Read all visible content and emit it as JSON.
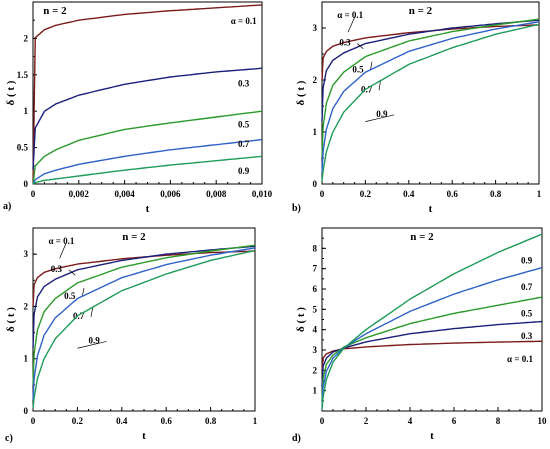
{
  "colors": {
    "0.1": "#7b1a1a",
    "0.3": "#1a1f7a",
    "0.5": "#2a9a2a",
    "0.7": "#2f62c9",
    "0.9": "#1e9b57"
  },
  "chart_data": [
    {
      "type": "line",
      "panel_label": "a)",
      "title": "n = 2",
      "xlabel": "t",
      "ylabel": "δ ( t )",
      "xlim": [
        0,
        0.01
      ],
      "ylim": [
        0,
        2.5
      ],
      "x_ticks": [
        "0",
        "0,002",
        "0,004",
        "0,006",
        "0,008",
        "0,010"
      ],
      "y_ticks": [
        "0",
        "0.5",
        "1",
        "1.5",
        "2"
      ],
      "series": [
        {
          "name": "α = 0.1",
          "alpha": 0.1,
          "x": [
            0,
            0.0001,
            0.0005,
            0.001,
            0.002,
            0.004,
            0.006,
            0.008,
            0.01
          ],
          "y": [
            0.02,
            2.01,
            2.12,
            2.18,
            2.25,
            2.33,
            2.38,
            2.42,
            2.46
          ]
        },
        {
          "name": "0.3",
          "alpha": 0.3,
          "x": [
            0,
            0.0001,
            0.0005,
            0.001,
            0.002,
            0.004,
            0.006,
            0.008,
            0.01
          ],
          "y": [
            0.2,
            0.77,
            1.0,
            1.1,
            1.22,
            1.37,
            1.47,
            1.54,
            1.59
          ]
        },
        {
          "name": "0.5",
          "alpha": 0.5,
          "x": [
            0,
            0.0001,
            0.0005,
            0.001,
            0.002,
            0.004,
            0.006,
            0.008,
            0.01
          ],
          "y": [
            0,
            0.25,
            0.38,
            0.47,
            0.6,
            0.75,
            0.84,
            0.92,
            1.0
          ]
        },
        {
          "name": "0.7",
          "alpha": 0.7,
          "x": [
            0,
            0.0001,
            0.0005,
            0.001,
            0.002,
            0.004,
            0.006,
            0.008,
            0.01
          ],
          "y": [
            0,
            0.06,
            0.14,
            0.19,
            0.27,
            0.38,
            0.47,
            0.54,
            0.61
          ]
        },
        {
          "name": "0.9",
          "alpha": 0.9,
          "x": [
            0,
            0.0001,
            0.0005,
            0.001,
            0.002,
            0.004,
            0.006,
            0.008,
            0.01
          ],
          "y": [
            0,
            0.02,
            0.05,
            0.07,
            0.11,
            0.19,
            0.26,
            0.32,
            0.38
          ]
        }
      ]
    },
    {
      "type": "line",
      "panel_label": "b)",
      "title": "n = 2",
      "xlabel": "t",
      "ylabel": "δ ( t )",
      "xlim": [
        0,
        1
      ],
      "ylim": [
        0,
        3.5
      ],
      "x_ticks": [
        "0",
        "0.2",
        "0.4",
        "0.6",
        "0.8",
        "1"
      ],
      "y_ticks": [
        "0",
        "1",
        "2",
        "3"
      ],
      "series": [
        {
          "name": "α = 0.1",
          "alpha": 0.1,
          "x": [
            0,
            0.005,
            0.02,
            0.05,
            0.1,
            0.2,
            0.4,
            0.6,
            0.8,
            1.0
          ],
          "y": [
            2.0,
            2.42,
            2.55,
            2.65,
            2.72,
            2.81,
            2.91,
            2.98,
            3.03,
            3.06
          ]
        },
        {
          "name": "0.3",
          "alpha": 0.3,
          "x": [
            0,
            0.005,
            0.02,
            0.05,
            0.1,
            0.2,
            0.4,
            0.6,
            0.8,
            1.0
          ],
          "y": [
            1.2,
            1.85,
            2.18,
            2.38,
            2.52,
            2.7,
            2.88,
            3.0,
            3.08,
            3.15
          ]
        },
        {
          "name": "0.5",
          "alpha": 0.5,
          "x": [
            0,
            0.005,
            0.02,
            0.05,
            0.1,
            0.2,
            0.4,
            0.6,
            0.8,
            1.0
          ],
          "y": [
            0.5,
            1.1,
            1.55,
            1.9,
            2.15,
            2.45,
            2.75,
            2.93,
            3.06,
            3.17
          ]
        },
        {
          "name": "0.7",
          "alpha": 0.7,
          "x": [
            0,
            0.005,
            0.02,
            0.05,
            0.1,
            0.2,
            0.4,
            0.6,
            0.8,
            1.0
          ],
          "y": [
            0.2,
            0.62,
            1.05,
            1.45,
            1.78,
            2.15,
            2.55,
            2.8,
            2.98,
            3.12
          ]
        },
        {
          "name": "0.9",
          "alpha": 0.9,
          "x": [
            0,
            0.005,
            0.02,
            0.05,
            0.1,
            0.2,
            0.4,
            0.6,
            0.8,
            1.0
          ],
          "y": [
            0.05,
            0.25,
            0.62,
            1.0,
            1.38,
            1.82,
            2.3,
            2.62,
            2.88,
            3.07
          ]
        }
      ]
    },
    {
      "type": "line",
      "panel_label": "c)",
      "title": "n = 2",
      "xlabel": "t",
      "ylabel": "δ ( t )",
      "xlim": [
        0,
        1
      ],
      "ylim": [
        0,
        3.5
      ],
      "x_ticks": [
        "0",
        "0.2",
        "0.4",
        "0.6",
        "0.8",
        "1"
      ],
      "y_ticks": [
        "0",
        "1",
        "2",
        "3"
      ],
      "series": [
        {
          "name": "α = 0.1",
          "alpha": 0.1,
          "x": [
            0,
            0.005,
            0.02,
            0.05,
            0.1,
            0.2,
            0.4,
            0.6,
            0.8,
            1.0
          ],
          "y": [
            2.0,
            2.42,
            2.55,
            2.65,
            2.72,
            2.81,
            2.91,
            2.98,
            3.03,
            3.06
          ]
        },
        {
          "name": "0.3",
          "alpha": 0.3,
          "x": [
            0,
            0.005,
            0.02,
            0.05,
            0.1,
            0.2,
            0.4,
            0.6,
            0.8,
            1.0
          ],
          "y": [
            1.2,
            1.85,
            2.18,
            2.38,
            2.52,
            2.7,
            2.88,
            3.0,
            3.08,
            3.15
          ]
        },
        {
          "name": "0.5",
          "alpha": 0.5,
          "x": [
            0,
            0.005,
            0.02,
            0.05,
            0.1,
            0.2,
            0.4,
            0.6,
            0.8,
            1.0
          ],
          "y": [
            0.5,
            1.1,
            1.55,
            1.9,
            2.15,
            2.45,
            2.75,
            2.93,
            3.06,
            3.17
          ]
        },
        {
          "name": "0.7",
          "alpha": 0.7,
          "x": [
            0,
            0.005,
            0.02,
            0.05,
            0.1,
            0.2,
            0.4,
            0.6,
            0.8,
            1.0
          ],
          "y": [
            0.2,
            0.62,
            1.05,
            1.45,
            1.78,
            2.15,
            2.55,
            2.8,
            2.98,
            3.12
          ]
        },
        {
          "name": "0.9",
          "alpha": 0.9,
          "x": [
            0,
            0.005,
            0.02,
            0.05,
            0.1,
            0.2,
            0.4,
            0.6,
            0.8,
            1.0
          ],
          "y": [
            0.05,
            0.25,
            0.62,
            1.0,
            1.38,
            1.82,
            2.3,
            2.62,
            2.88,
            3.07
          ]
        }
      ]
    },
    {
      "type": "line",
      "panel_label": "d)",
      "title": "n = 2",
      "xlabel": "t",
      "ylabel": "δ ( t )",
      "xlim": [
        0,
        10
      ],
      "ylim": [
        0,
        9
      ],
      "x_ticks": [
        "0",
        "2",
        "4",
        "6",
        "8",
        "10"
      ],
      "y_ticks": [
        "1",
        "2",
        "3",
        "4",
        "5",
        "6",
        "7",
        "8"
      ],
      "series": [
        {
          "name": "α = 0.1",
          "alpha": 0.1,
          "x": [
            0,
            0.05,
            0.2,
            0.5,
            1,
            2,
            4,
            6,
            8,
            10
          ],
          "y": [
            2.0,
            2.6,
            2.81,
            2.95,
            3.06,
            3.15,
            3.27,
            3.34,
            3.39,
            3.43
          ]
        },
        {
          "name": "0.3",
          "alpha": 0.3,
          "x": [
            0,
            0.05,
            0.2,
            0.5,
            1,
            2,
            4,
            6,
            8,
            10
          ],
          "y": [
            1.2,
            2.2,
            2.6,
            2.9,
            3.1,
            3.4,
            3.8,
            4.05,
            4.25,
            4.4
          ]
        },
        {
          "name": "0.5",
          "alpha": 0.5,
          "x": [
            0,
            0.05,
            0.2,
            0.5,
            1,
            2,
            4,
            6,
            8,
            10
          ],
          "y": [
            0.5,
            1.6,
            2.3,
            2.75,
            3.15,
            3.6,
            4.3,
            4.8,
            5.2,
            5.6
          ]
        },
        {
          "name": "0.7",
          "alpha": 0.7,
          "x": [
            0,
            0.05,
            0.2,
            0.5,
            1,
            2,
            4,
            6,
            8,
            10
          ],
          "y": [
            0.2,
            1.15,
            1.95,
            2.6,
            3.12,
            3.8,
            4.9,
            5.75,
            6.45,
            7.05
          ]
        },
        {
          "name": "0.9",
          "alpha": 0.9,
          "x": [
            0,
            0.05,
            0.2,
            0.5,
            1,
            2,
            4,
            6,
            8,
            10
          ],
          "y": [
            0.05,
            0.7,
            1.55,
            2.4,
            3.1,
            4.0,
            5.5,
            6.75,
            7.8,
            8.7
          ]
        }
      ]
    }
  ]
}
